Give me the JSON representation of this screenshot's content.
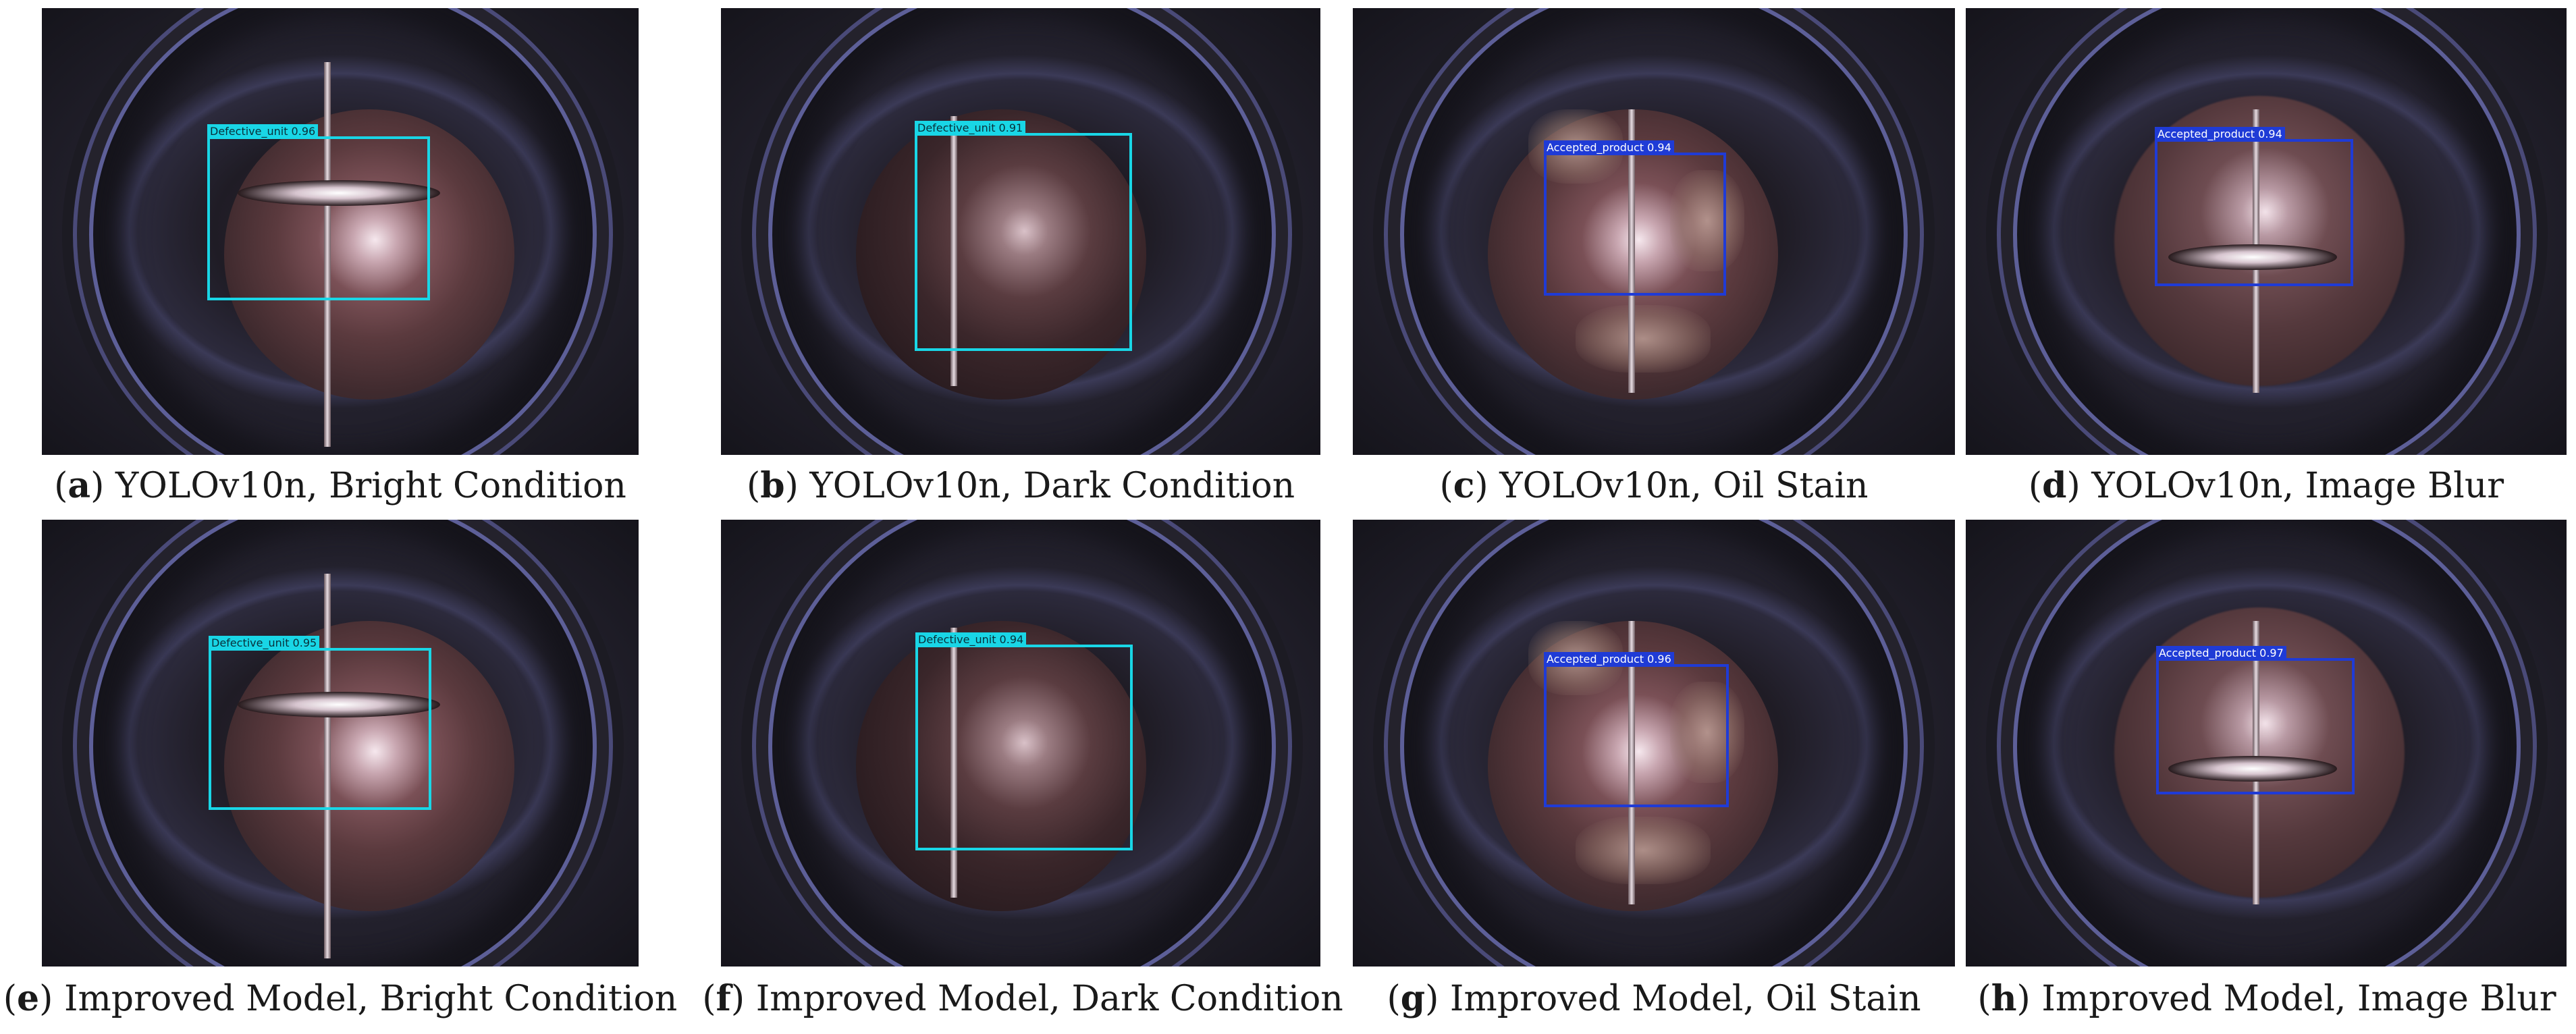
{
  "colors": {
    "defect_box": "#19d6e6",
    "accept_box": "#1f3bd6",
    "accept_label_bg": "#1f3bd6",
    "defect_label_bg": "#19d6e6"
  },
  "panels": [
    {
      "letter": "a",
      "caption": "YOLOv10n, Bright Condition",
      "label": "Defective_unit  0.96",
      "kind": "defect",
      "scene": "bright"
    },
    {
      "letter": "b",
      "caption": "YOLOv10n, Dark Condition",
      "label": "Defective_unit  0.91",
      "kind": "defect",
      "scene": "dark"
    },
    {
      "letter": "c",
      "caption": "YOLOv10n, Oil Stain",
      "label": "Accepted_product  0.94",
      "kind": "accept",
      "scene": "oil"
    },
    {
      "letter": "d",
      "caption": "YOLOv10n, Image Blur",
      "label": "Accepted_product  0.94",
      "kind": "accept",
      "scene": "blur"
    },
    {
      "letter": "e",
      "caption": "Improved Model, Bright Condition",
      "label": "Defective_unit  0.95",
      "kind": "defect",
      "scene": "bright"
    },
    {
      "letter": "f",
      "caption": "Improved Model, Dark Condition",
      "label": "Defective_unit  0.94",
      "kind": "defect",
      "scene": "dark"
    },
    {
      "letter": "g",
      "caption": "Improved Model, Oil Stain",
      "label": "Accepted_product  0.96",
      "kind": "accept",
      "scene": "oil"
    },
    {
      "letter": "h",
      "caption": "Improved Model, Image Blur",
      "label": "Accepted_product  0.97",
      "kind": "accept",
      "scene": "blur"
    }
  ]
}
